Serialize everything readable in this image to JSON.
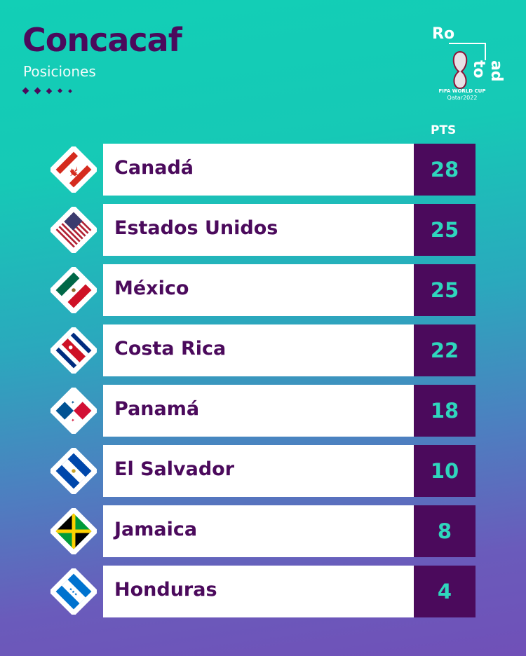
{
  "header": {
    "title": "Concacaf",
    "subtitle": "Posiciones"
  },
  "logo": {
    "line1": "Ro",
    "line2": "ad to",
    "brand": "FIFA WORLD CUP",
    "edition": "Qatar2022"
  },
  "table": {
    "pts_header": "PTS",
    "rows": [
      {
        "team": "Canadá",
        "pts": "28",
        "flag": "canada-flag"
      },
      {
        "team": "Estados Unidos",
        "pts": "25",
        "flag": "usa-flag"
      },
      {
        "team": "México",
        "pts": "25",
        "flag": "mexico-flag"
      },
      {
        "team": "Costa Rica",
        "pts": "22",
        "flag": "costa-rica-flag"
      },
      {
        "team": "Panamá",
        "pts": "18",
        "flag": "panama-flag"
      },
      {
        "team": "El Salvador",
        "pts": "10",
        "flag": "el-salvador-flag"
      },
      {
        "team": "Jamaica",
        "pts": "8",
        "flag": "jamaica-flag"
      },
      {
        "team": "Honduras",
        "pts": "4",
        "flag": "honduras-flag"
      }
    ]
  },
  "colors": {
    "primary": "#4b0a5c",
    "accent": "#2fd6bd",
    "teal": "#12cfb6"
  }
}
